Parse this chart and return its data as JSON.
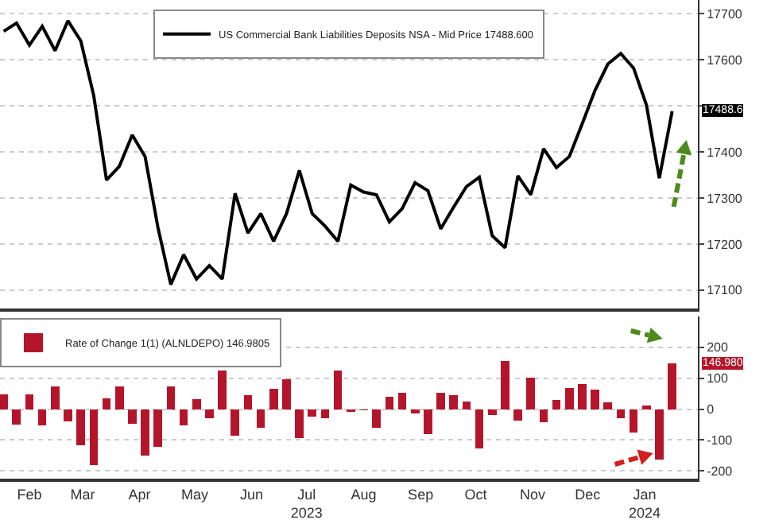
{
  "chart_data": [
    {
      "type": "line",
      "legend": "top",
      "grid": "y",
      "tick_labels": "y",
      "x": [
        "2023-02-01",
        "2023-02-08",
        "2023-02-15",
        "2023-02-22",
        "2023-03-01",
        "2023-03-08",
        "2023-03-15",
        "2023-03-22",
        "2023-03-29",
        "2023-04-05",
        "2023-04-12",
        "2023-04-19",
        "2023-04-26",
        "2023-05-03",
        "2023-05-10",
        "2023-05-17",
        "2023-05-24",
        "2023-05-31",
        "2023-06-07",
        "2023-06-14",
        "2023-06-21",
        "2023-06-28",
        "2023-07-05",
        "2023-07-12",
        "2023-07-19",
        "2023-07-26",
        "2023-08-02",
        "2023-08-09",
        "2023-08-16",
        "2023-08-23",
        "2023-08-30",
        "2023-09-06",
        "2023-09-13",
        "2023-09-20",
        "2023-09-27",
        "2023-10-04",
        "2023-10-11",
        "2023-10-18",
        "2023-10-25",
        "2023-11-01",
        "2023-11-08",
        "2023-11-15",
        "2023-11-22",
        "2023-11-29",
        "2023-12-06",
        "2023-12-13",
        "2023-12-20",
        "2023-12-27",
        "2024-01-03",
        "2024-01-10",
        "2024-01-17",
        "2024-01-24",
        "2024-01-31"
      ],
      "series": [
        {
          "name": "US Commercial Bank Liabilities Deposits NSA - Mid Price 17488.600",
          "color": "#000000",
          "values": [
            17662,
            17680,
            17632,
            17673,
            17620,
            17685,
            17641,
            17523,
            17339,
            17369,
            17437,
            17390,
            17236,
            17112,
            17177,
            17124,
            17153,
            17124,
            17310,
            17224,
            17266,
            17206,
            17266,
            17360,
            17266,
            17239,
            17206,
            17328,
            17313,
            17307,
            17248,
            17277,
            17333,
            17316,
            17233,
            17280,
            17325,
            17345,
            17218,
            17192,
            17348,
            17307,
            17407,
            17366,
            17390,
            17461,
            17534,
            17591,
            17614,
            17582,
            17502,
            17343,
            17488.6
          ]
        }
      ],
      "xlim": [
        "2023-01-30",
        "2024-02-14"
      ],
      "ylim": [
        17060,
        17730
      ],
      "yticks": [
        17100,
        17200,
        17300,
        17400,
        {
          "value": 17500,
          "label": null
        },
        17600,
        17700
      ],
      "annotations": [
        "17488.6"
      ]
    },
    {
      "type": "bar",
      "legend": "top left",
      "grid": "y",
      "x": [
        "2023-02-01",
        "2023-02-08",
        "2023-02-15",
        "2023-02-22",
        "2023-03-01",
        "2023-03-08",
        "2023-03-15",
        "2023-03-22",
        "2023-03-29",
        "2023-04-05",
        "2023-04-12",
        "2023-04-19",
        "2023-04-26",
        "2023-05-03",
        "2023-05-10",
        "2023-05-17",
        "2023-05-24",
        "2023-05-31",
        "2023-06-07",
        "2023-06-14",
        "2023-06-21",
        "2023-06-28",
        "2023-07-05",
        "2023-07-12",
        "2023-07-19",
        "2023-07-26",
        "2023-08-02",
        "2023-08-09",
        "2023-08-16",
        "2023-08-23",
        "2023-08-30",
        "2023-09-06",
        "2023-09-13",
        "2023-09-20",
        "2023-09-27",
        "2023-10-04",
        "2023-10-11",
        "2023-10-18",
        "2023-10-25",
        "2023-11-01",
        "2023-11-08",
        "2023-11-15",
        "2023-11-22",
        "2023-11-29",
        "2023-12-06",
        "2023-12-13",
        "2023-12-20",
        "2023-12-27",
        "2024-01-03",
        "2024-01-10",
        "2024-01-17",
        "2024-01-24",
        "2024-01-31"
      ],
      "series": [
        {
          "name": "Rate of Change 1(1) (ALNLDEPO) 146.9805",
          "color": "#b5152b",
          "values": [
            49,
            -49,
            49,
            -53,
            73,
            -39,
            -118,
            -180,
            35,
            73,
            -47,
            -151,
            -122,
            73,
            -53,
            33,
            -29,
            124,
            -86,
            45,
            -59,
            65,
            96,
            -94,
            -24,
            -29,
            124,
            -10,
            -3,
            -59,
            39,
            54,
            -14,
            -82,
            54,
            45,
            25,
            -126,
            -19,
            157,
            -37,
            101,
            -43,
            29,
            68,
            80,
            64,
            23,
            -29,
            -76,
            12,
            -163,
            146.98
          ]
        }
      ],
      "xlim": [
        "2023-01-30",
        "2024-02-14"
      ],
      "xticks": [
        {
          "value": "2023-02-15",
          "label": "Feb"
        },
        {
          "value": "2023-03-16",
          "label": "Mar"
        },
        {
          "value": "2023-04-16",
          "label": "Apr"
        },
        {
          "value": "2023-05-16",
          "label": "May"
        },
        {
          "value": "2023-06-16",
          "label": "Jun"
        },
        {
          "value": "2023-07-16",
          "label": "Jul\n2023"
        },
        {
          "value": "2023-08-16",
          "label": "Aug"
        },
        {
          "value": "2023-09-16",
          "label": "Sep"
        },
        {
          "value": "2023-10-16",
          "label": "Oct"
        },
        {
          "value": "2023-11-16",
          "label": "Nov"
        },
        {
          "value": "2023-12-16",
          "label": "Dec"
        },
        {
          "value": "2024-01-16",
          "label": "Jan\n2024"
        }
      ],
      "ylim": [
        -225,
        300
      ],
      "yticks": [
        -200,
        -100,
        0,
        100,
        200
      ],
      "annotations": [
        "146.980"
      ]
    }
  ]
}
